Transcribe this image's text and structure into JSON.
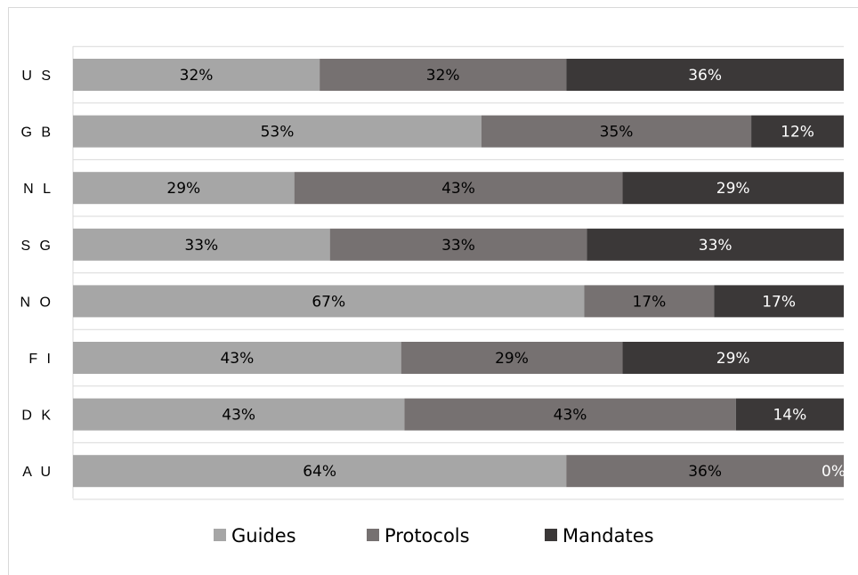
{
  "chart_data": {
    "type": "bar",
    "orientation": "horizontal",
    "stacked": true,
    "normalized": true,
    "categories": [
      "US",
      "GB",
      "NL",
      "SG",
      "NO",
      "FI",
      "DK",
      "AU"
    ],
    "category_labels": [
      "U S",
      "G B",
      "N L",
      "S G",
      "N O",
      "F I",
      "D K",
      "A U"
    ],
    "series": [
      {
        "name": "Guides",
        "color": "#a6a6a6",
        "label_color": "#000000",
        "values": [
          32,
          53,
          29,
          33,
          67,
          43,
          43,
          64
        ]
      },
      {
        "name": "Protocols",
        "color": "#767171",
        "label_color": "#000000",
        "values": [
          32,
          35,
          43,
          33,
          17,
          29,
          43,
          36
        ]
      },
      {
        "name": "Mandates",
        "color": "#3b3838",
        "label_color": "#ffffff",
        "values": [
          36,
          12,
          29,
          33,
          17,
          29,
          14,
          0
        ]
      }
    ],
    "data_labels": [
      [
        "32%",
        "53%",
        "29%",
        "33%",
        "67%",
        "43%",
        "43%",
        "64%"
      ],
      [
        "32%",
        "35%",
        "43%",
        "33%",
        "17%",
        "29%",
        "43%",
        "36%"
      ],
      [
        "36%",
        "12%",
        "29%",
        "33%",
        "17%",
        "29%",
        "14%",
        "0%"
      ]
    ],
    "xlim": [
      0,
      100
    ],
    "grid": true,
    "legend_position": "bottom"
  }
}
